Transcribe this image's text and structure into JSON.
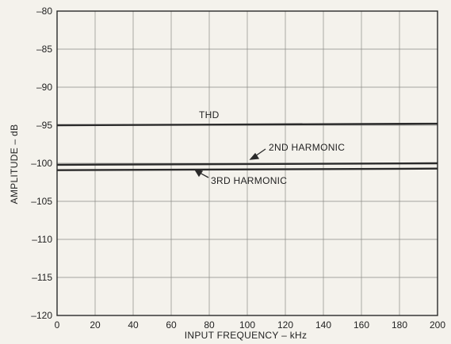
{
  "chart_data": {
    "type": "line",
    "xlabel": "INPUT FREQUENCY – kHz",
    "ylabel": "AMPLITUDE – dB",
    "xlim": [
      0,
      200
    ],
    "ylim": [
      -120,
      -80
    ],
    "x_ticks": [
      "0",
      "20",
      "40",
      "60",
      "80",
      "100",
      "120",
      "140",
      "160",
      "180",
      "200"
    ],
    "y_ticks": [
      "–80",
      "–85",
      "–90",
      "–95",
      "–100",
      "–105",
      "–110",
      "–115",
      "–120"
    ],
    "grid": true,
    "legend": "none",
    "line_color": "#2a2a2a",
    "series": [
      {
        "name": "THD",
        "x": [
          0,
          200
        ],
        "y": [
          -95.0,
          -94.8
        ]
      },
      {
        "name": "2ND HARMONIC",
        "x": [
          0,
          200
        ],
        "y": [
          -100.2,
          -100.0
        ]
      },
      {
        "name": "3RD HARMONIC",
        "x": [
          0,
          200
        ],
        "y": [
          -100.9,
          -100.7
        ]
      }
    ]
  }
}
